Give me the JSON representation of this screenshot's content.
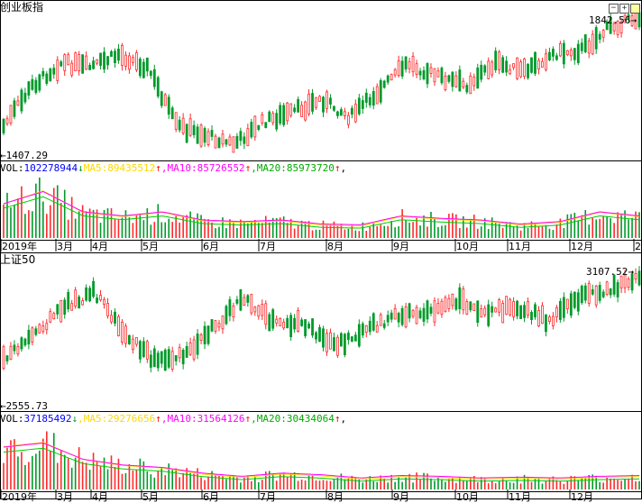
{
  "colors": {
    "up": "#ff2a2a",
    "down": "#009a2a",
    "ma5": "#ffd800",
    "ma10": "#ff00ff",
    "ma20": "#00cc00",
    "vol_label": "#0000ff",
    "grid": "#000000"
  },
  "window_buttons": [
    "minimize-icon",
    "maximize-icon",
    "restore-icon"
  ],
  "panel1": {
    "title": "创业板指",
    "high_label": "1842.56",
    "low_label": "1407.29",
    "vol": {
      "label": "VOL:",
      "value": "102278944",
      "arrow": "↓",
      "ma5": "MA5:89435512",
      "ma5_arrow": "↑",
      "ma10": ",MA10:85726552",
      "ma10_arrow": "↑",
      "ma20": ",MA20:85973720",
      "ma20_arrow": "↑",
      "tail": ","
    },
    "months": [
      "2019年",
      "3月",
      "4月",
      "5月",
      "6月",
      "7月",
      "8月",
      "9月",
      "10月",
      "11月",
      "12月",
      "2"
    ]
  },
  "panel2": {
    "title": "上证50",
    "high_label": "3107.52",
    "low_label": "2555.73",
    "vol": {
      "label": "VOL:",
      "value": "37185492",
      "arrow": "↓",
      "ma5": ",MA5:29276656",
      "ma5_arrow": "↑",
      "ma10": ",MA10:31564126",
      "ma10_arrow": "↑",
      "ma20": ",MA20:30434064",
      "ma20_arrow": "↑",
      "tail": ","
    },
    "months": [
      "2019年",
      "3月",
      "4月",
      "5月",
      "6月",
      "7月",
      "8月",
      "9月",
      "10月",
      "11月",
      "12月"
    ]
  }
}
